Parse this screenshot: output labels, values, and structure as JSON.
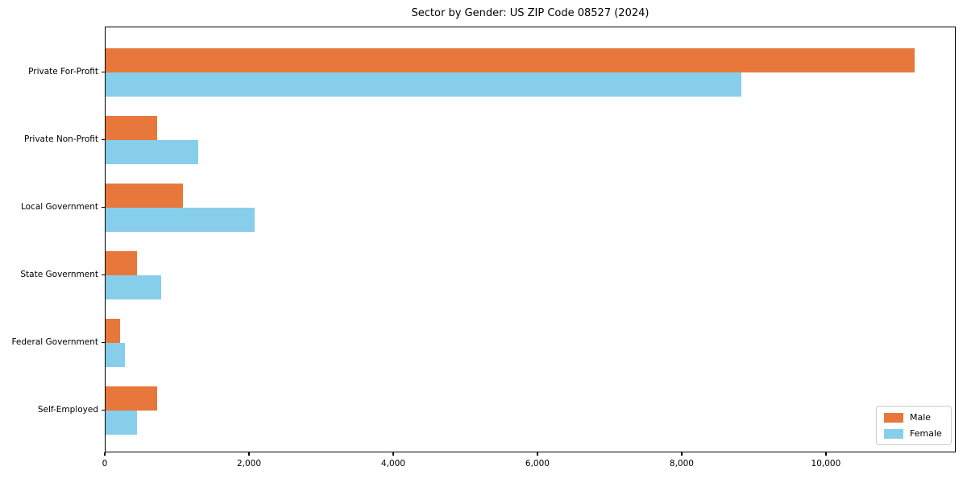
{
  "chart_data": {
    "type": "bar",
    "orientation": "horizontal",
    "title": "Sector by Gender: US ZIP Code 08527 (2024)",
    "categories": [
      "Private For-Profit",
      "Private Non-Profit",
      "Local Government",
      "State Government",
      "Federal Government",
      "Self-Employed"
    ],
    "series": [
      {
        "name": "Male",
        "color": "#E8773B",
        "values": [
          11220,
          715,
          1070,
          440,
          200,
          710
        ]
      },
      {
        "name": "Female",
        "color": "#87CEEB",
        "values": [
          8820,
          1285,
          2065,
          765,
          270,
          430
        ]
      }
    ],
    "xlabel": "",
    "ylabel": "",
    "xlim": [
      0,
      11800
    ],
    "xticks": [
      0,
      2000,
      4000,
      6000,
      8000,
      10000
    ],
    "xtick_labels": [
      "0",
      "2,000",
      "4,000",
      "6,000",
      "8,000",
      "10,000"
    ],
    "grid": false,
    "legend": {
      "position": "lower right",
      "entries": [
        "Male",
        "Female"
      ]
    },
    "colors": {
      "background": "#ffffff",
      "axis": "#000000",
      "legend_border": "#cccccc"
    }
  }
}
